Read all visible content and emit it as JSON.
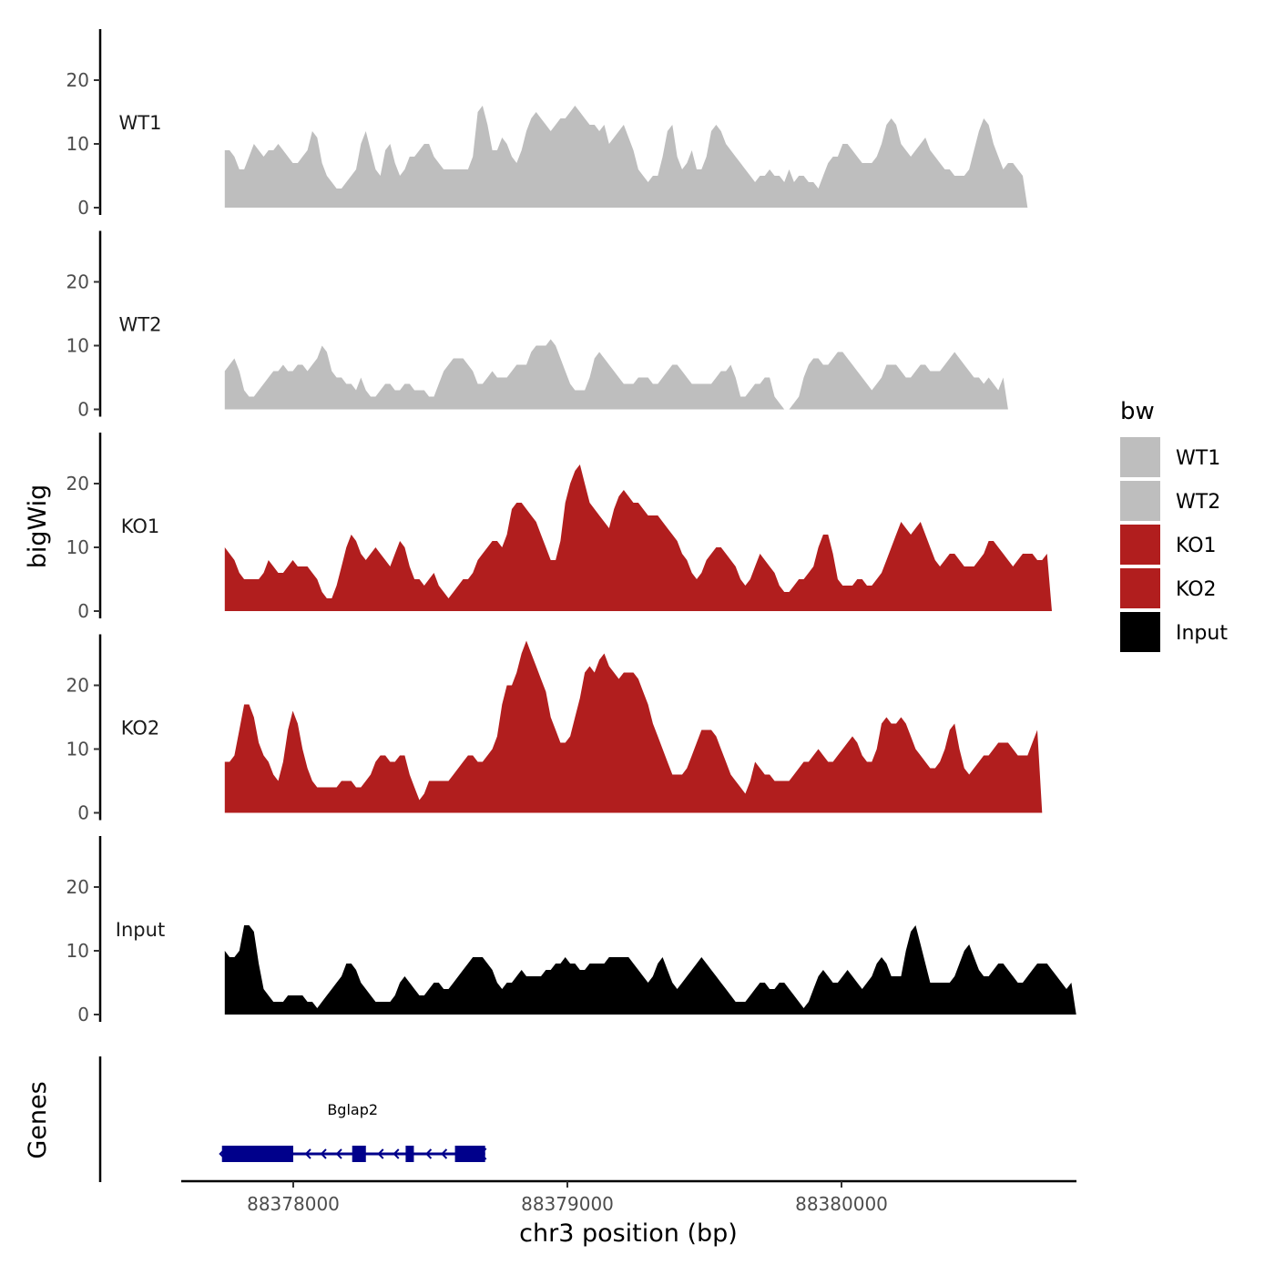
{
  "chart_data": {
    "type": "area",
    "x_range": [
      88377750,
      88380680
    ],
    "ylim": [
      0,
      27
    ],
    "y_ticks": [
      0,
      10,
      20
    ],
    "ylabel": "bigWig",
    "xlabel": "chr3 position (bp)",
    "x_ticks": [
      {
        "value": 88378000,
        "label": "88378000"
      },
      {
        "value": 88379000,
        "label": "88379000"
      },
      {
        "value": 88380000,
        "label": "88380000"
      }
    ],
    "legend": {
      "title": "bw",
      "entries": [
        {
          "label": "WT1",
          "color": "#bebebe"
        },
        {
          "label": "WT2",
          "color": "#bebebe"
        },
        {
          "label": "KO1",
          "color": "#b11e1e"
        },
        {
          "label": "KO2",
          "color": "#b11e1e"
        },
        {
          "label": "Input",
          "color": "#000000"
        }
      ]
    },
    "series": [
      {
        "name": "WT1",
        "color": "#bebebe",
        "values": [
          9,
          9,
          8,
          6,
          6,
          8,
          10,
          9,
          8,
          9,
          9,
          10,
          9,
          8,
          7,
          7,
          8,
          9,
          12,
          11,
          7,
          5,
          4,
          3,
          3,
          4,
          5,
          6,
          10,
          12,
          9,
          6,
          5,
          9,
          10,
          7,
          5,
          6,
          8,
          8,
          9,
          10,
          10,
          8,
          7,
          6,
          6,
          6,
          6,
          6,
          6,
          8,
          15,
          16,
          13,
          9,
          9,
          11,
          10,
          8,
          7,
          9,
          12,
          14,
          15,
          14,
          13,
          12,
          13,
          14,
          14,
          15,
          16,
          15,
          14,
          13,
          13,
          12,
          13,
          10,
          11,
          12,
          13,
          11,
          9,
          6,
          5,
          4,
          5,
          5,
          8,
          12,
          13,
          8,
          6,
          7,
          9,
          6,
          6,
          8,
          12,
          13,
          12,
          10,
          9,
          8,
          7,
          6,
          5,
          4,
          5,
          5,
          6,
          5,
          5,
          4,
          6,
          4,
          5,
          5,
          4,
          4,
          3,
          5,
          7,
          8,
          8,
          10,
          10,
          9,
          8,
          7,
          7,
          7,
          8,
          10,
          13,
          14,
          13,
          10,
          9,
          8,
          9,
          10,
          11,
          9,
          8,
          7,
          6,
          6,
          5,
          5,
          5,
          6,
          9,
          12,
          14,
          13,
          10,
          8,
          6,
          7,
          7,
          6,
          5,
          0
        ],
        "start": 88377750,
        "step": 17.75
      },
      {
        "name": "WT2",
        "color": "#bebebe",
        "values": [
          6,
          7,
          8,
          6,
          3,
          2,
          2,
          3,
          4,
          5,
          6,
          6,
          7,
          6,
          6,
          7,
          7,
          6,
          7,
          8,
          10,
          9,
          6,
          5,
          5,
          4,
          4,
          3,
          5,
          3,
          2,
          2,
          3,
          4,
          4,
          3,
          3,
          4,
          4,
          3,
          3,
          3,
          2,
          2,
          4,
          6,
          7,
          8,
          8,
          8,
          7,
          6,
          4,
          4,
          5,
          6,
          5,
          5,
          5,
          6,
          7,
          7,
          7,
          9,
          10,
          10,
          10,
          11,
          10,
          8,
          6,
          4,
          3,
          3,
          3,
          5,
          8,
          9,
          8,
          7,
          6,
          5,
          4,
          4,
          4,
          5,
          5,
          5,
          4,
          4,
          5,
          6,
          7,
          7,
          6,
          5,
          4,
          4,
          4,
          4,
          4,
          5,
          6,
          6,
          7,
          5,
          2,
          2,
          3,
          4,
          4,
          5,
          5,
          2,
          1,
          0,
          0,
          1,
          2,
          5,
          7,
          8,
          8,
          7,
          7,
          8,
          9,
          9,
          8,
          7,
          6,
          5,
          4,
          3,
          4,
          5,
          7,
          7,
          7,
          6,
          5,
          5,
          6,
          7,
          7,
          6,
          6,
          6,
          7,
          8,
          9,
          8,
          7,
          6,
          5,
          5,
          4,
          5,
          4,
          3,
          5,
          0
        ],
        "start": 88377750,
        "step": 17.75
      },
      {
        "name": "KO1",
        "color": "#b11e1e",
        "values": [
          10,
          9,
          8,
          6,
          5,
          5,
          5,
          5,
          6,
          8,
          7,
          6,
          6,
          7,
          8,
          7,
          7,
          7,
          6,
          5,
          3,
          2,
          2,
          4,
          7,
          10,
          12,
          11,
          9,
          8,
          9,
          10,
          9,
          8,
          7,
          9,
          11,
          10,
          7,
          5,
          5,
          4,
          5,
          6,
          4,
          3,
          2,
          3,
          4,
          5,
          5,
          6,
          8,
          9,
          10,
          11,
          11,
          10,
          12,
          16,
          17,
          17,
          16,
          15,
          14,
          12,
          10,
          8,
          8,
          11,
          17,
          20,
          22,
          23,
          20,
          17,
          16,
          15,
          14,
          13,
          16,
          18,
          19,
          18,
          17,
          17,
          16,
          15,
          15,
          15,
          14,
          13,
          12,
          11,
          9,
          8,
          6,
          5,
          6,
          8,
          9,
          10,
          10,
          9,
          8,
          7,
          5,
          4,
          5,
          7,
          9,
          8,
          7,
          6,
          4,
          3,
          3,
          4,
          5,
          5,
          6,
          7,
          10,
          12,
          12,
          9,
          5,
          4,
          4,
          4,
          5,
          5,
          4,
          4,
          5,
          6,
          8,
          10,
          12,
          14,
          13,
          12,
          13,
          14,
          12,
          10,
          8,
          7,
          8,
          9,
          9,
          8,
          7,
          7,
          7,
          8,
          9,
          11,
          11,
          10,
          9,
          8,
          7,
          8,
          9,
          9,
          9,
          8,
          8,
          9,
          0
        ],
        "start": 88377750,
        "step": 17.75
      },
      {
        "name": "KO2",
        "color": "#b11e1e",
        "values": [
          8,
          8,
          9,
          13,
          17,
          17,
          15,
          11,
          9,
          8,
          6,
          5,
          8,
          13,
          16,
          14,
          10,
          7,
          5,
          4,
          4,
          4,
          4,
          4,
          5,
          5,
          5,
          4,
          4,
          5,
          6,
          8,
          9,
          9,
          8,
          8,
          9,
          9,
          6,
          4,
          2,
          3,
          5,
          5,
          5,
          5,
          5,
          6,
          7,
          8,
          9,
          9,
          8,
          8,
          9,
          10,
          12,
          17,
          20,
          20,
          22,
          25,
          27,
          25,
          23,
          21,
          19,
          15,
          13,
          11,
          11,
          12,
          15,
          18,
          22,
          23,
          22,
          24,
          25,
          23,
          22,
          21,
          22,
          22,
          22,
          21,
          19,
          17,
          14,
          12,
          10,
          8,
          6,
          6,
          6,
          7,
          9,
          11,
          13,
          13,
          13,
          12,
          10,
          8,
          6,
          5,
          4,
          3,
          5,
          8,
          7,
          6,
          6,
          5,
          5,
          5,
          5,
          6,
          7,
          8,
          8,
          9,
          10,
          9,
          8,
          8,
          9,
          10,
          11,
          12,
          11,
          9,
          8,
          8,
          10,
          14,
          15,
          14,
          14,
          15,
          14,
          12,
          10,
          9,
          8,
          7,
          7,
          8,
          10,
          13,
          14,
          10,
          7,
          6,
          7,
          8,
          9,
          9,
          10,
          11,
          11,
          11,
          10,
          9,
          9,
          9,
          11,
          13,
          0
        ],
        "start": 88377750,
        "step": 17.75
      },
      {
        "name": "Input",
        "color": "#000000",
        "values": [
          10,
          9,
          9,
          10,
          14,
          14,
          13,
          8,
          4,
          3,
          2,
          2,
          2,
          3,
          3,
          3,
          3,
          2,
          2,
          1,
          2,
          3,
          4,
          5,
          6,
          8,
          8,
          7,
          5,
          4,
          3,
          2,
          2,
          2,
          2,
          3,
          5,
          6,
          5,
          4,
          3,
          3,
          4,
          5,
          5,
          4,
          4,
          5,
          6,
          7,
          8,
          9,
          9,
          9,
          8,
          7,
          5,
          4,
          5,
          5,
          6,
          7,
          6,
          6,
          6,
          6,
          7,
          7,
          8,
          8,
          9,
          8,
          8,
          7,
          7,
          8,
          8,
          8,
          8,
          9,
          9,
          9,
          9,
          9,
          8,
          7,
          6,
          5,
          6,
          8,
          9,
          7,
          5,
          4,
          5,
          6,
          7,
          8,
          9,
          8,
          7,
          6,
          5,
          4,
          3,
          2,
          2,
          2,
          3,
          4,
          5,
          5,
          4,
          4,
          5,
          5,
          4,
          3,
          2,
          1,
          2,
          4,
          6,
          7,
          6,
          5,
          5,
          6,
          7,
          6,
          5,
          4,
          5,
          6,
          8,
          9,
          8,
          6,
          6,
          6,
          10,
          13,
          14,
          11,
          8,
          5,
          5,
          5,
          5,
          5,
          6,
          8,
          10,
          11,
          9,
          7,
          6,
          6,
          7,
          8,
          8,
          7,
          6,
          5,
          5,
          6,
          7,
          8,
          8,
          8,
          7,
          6,
          5,
          4,
          5,
          0
        ],
        "start": 88377750,
        "step": 17.75
      }
    ],
    "genes_track": {
      "label": "Genes",
      "gene_name": "Bglap2",
      "color": "#00008b",
      "intron": [
        88377740,
        88378700
      ],
      "exons": [
        [
          88377740,
          88378000
        ],
        [
          88378215,
          88378265
        ],
        [
          88378410,
          88378440
        ],
        [
          88378590,
          88378700
        ]
      ]
    }
  }
}
